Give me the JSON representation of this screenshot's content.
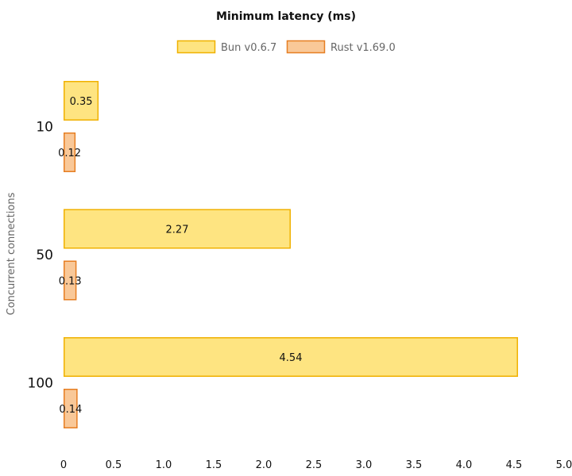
{
  "chart_data": {
    "type": "bar",
    "orientation": "horizontal",
    "title": "Minimum latency (ms)",
    "xlabel": "",
    "ylabel": "Concurrent connections",
    "categories": [
      "10",
      "50",
      "100"
    ],
    "series": [
      {
        "name": "Bun v0.6.7",
        "values": [
          0.35,
          2.27,
          4.54
        ],
        "fill": "#fee481",
        "stroke": "#f0b100"
      },
      {
        "name": "Rust v1.69.0",
        "values": [
          0.12,
          0.13,
          0.14
        ],
        "fill": "#f9c898",
        "stroke": "#e67e22"
      }
    ],
    "xlim": [
      0,
      5.0
    ],
    "xticks": [
      "0",
      "0.5",
      "1.0",
      "1.5",
      "2.0",
      "2.5",
      "3.0",
      "3.5",
      "4.0",
      "4.5",
      "5.0"
    ],
    "data_labels": [
      [
        "0.35",
        "2.27",
        "4.54"
      ],
      [
        "0.12",
        "0.13",
        "0.14"
      ]
    ],
    "legend_position": "top",
    "grid": false
  }
}
